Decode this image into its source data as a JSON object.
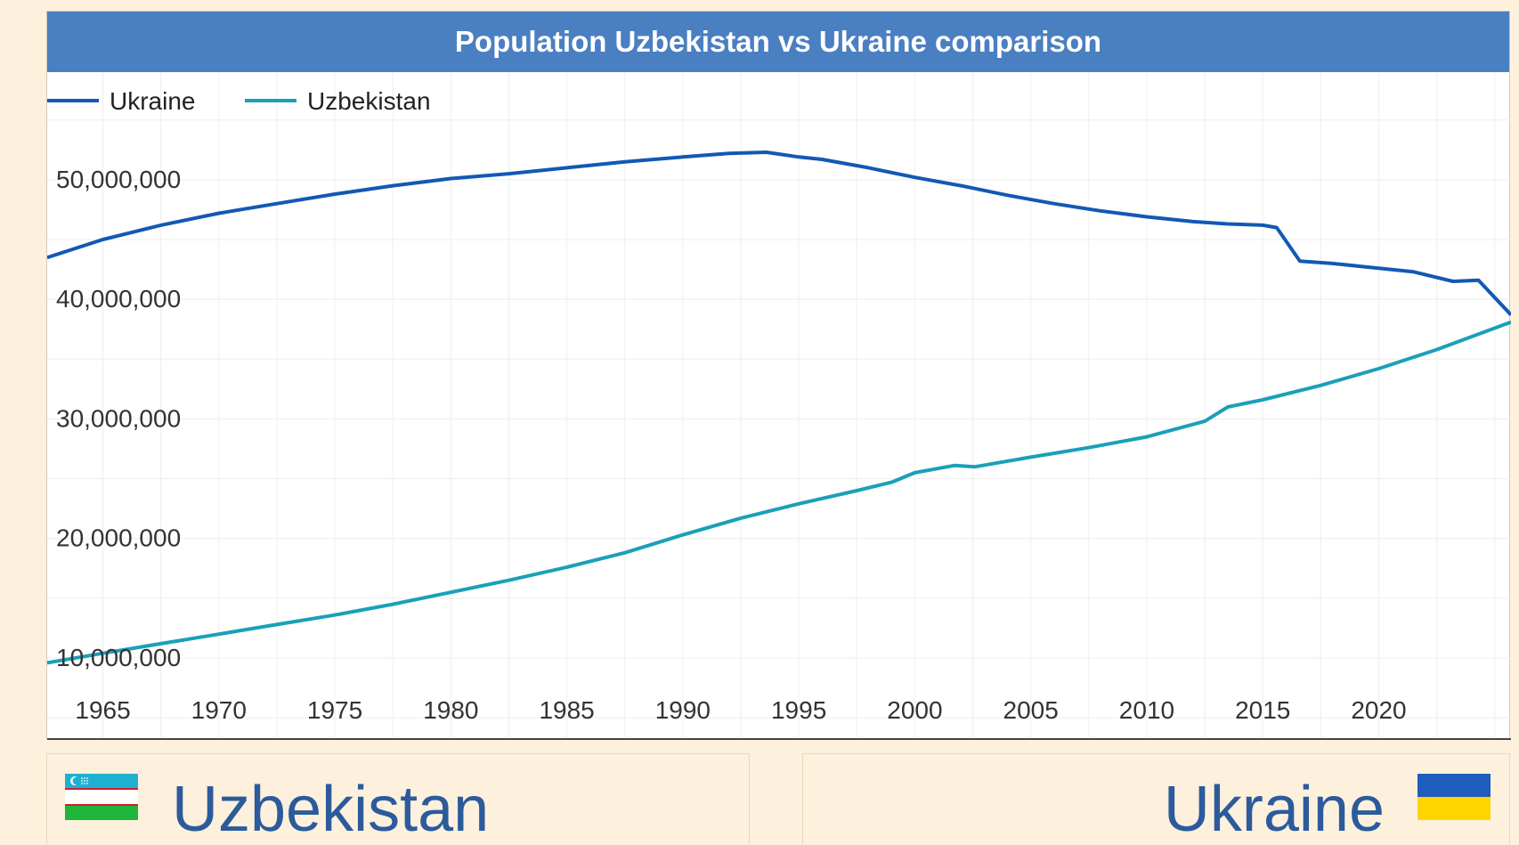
{
  "chart_data": {
    "type": "line",
    "title": "Population Uzbekistan vs Ukraine comparison",
    "xlabel": "",
    "ylabel": "",
    "xlim": [
      1962.6,
      2025.7
    ],
    "ylim": [
      3300000,
      59000000
    ],
    "legend_position": "top-left",
    "grid": true,
    "x_ticks": [
      1965,
      1970,
      1975,
      1980,
      1985,
      1990,
      1995,
      2000,
      2005,
      2010,
      2015,
      2020
    ],
    "y_ticks": [
      10000000,
      20000000,
      30000000,
      40000000,
      50000000
    ],
    "y_tick_labels": [
      "10,000,000",
      "20,000,000",
      "30,000,000",
      "40,000,000",
      "50,000,000"
    ],
    "series": [
      {
        "name": "Ukraine",
        "color": "#1259b4",
        "points": [
          [
            1962.6,
            43500000
          ],
          [
            1965,
            45000000
          ],
          [
            1967.5,
            46200000
          ],
          [
            1970,
            47200000
          ],
          [
            1972.5,
            48000000
          ],
          [
            1975,
            48800000
          ],
          [
            1977.5,
            49500000
          ],
          [
            1980,
            50100000
          ],
          [
            1982.5,
            50500000
          ],
          [
            1985,
            51000000
          ],
          [
            1987.5,
            51500000
          ],
          [
            1990,
            51900000
          ],
          [
            1992,
            52200000
          ],
          [
            1993.6,
            52300000
          ],
          [
            1995,
            51900000
          ],
          [
            1996,
            51700000
          ],
          [
            1998,
            51000000
          ],
          [
            2000,
            50200000
          ],
          [
            2002,
            49500000
          ],
          [
            2004,
            48700000
          ],
          [
            2006,
            48000000
          ],
          [
            2008,
            47400000
          ],
          [
            2010,
            46900000
          ],
          [
            2012,
            46500000
          ],
          [
            2013.5,
            46300000
          ],
          [
            2015,
            46200000
          ],
          [
            2015.6,
            46000000
          ],
          [
            2016.6,
            43200000
          ],
          [
            2018,
            43000000
          ],
          [
            2020,
            42600000
          ],
          [
            2021.5,
            42300000
          ],
          [
            2023.2,
            41500000
          ],
          [
            2024.3,
            41600000
          ],
          [
            2025.7,
            38700000
          ]
        ]
      },
      {
        "name": "Uzbekistan",
        "color": "#1aa0b8",
        "points": [
          [
            1962.6,
            9600000
          ],
          [
            1965,
            10400000
          ],
          [
            1967.5,
            11200000
          ],
          [
            1970,
            12000000
          ],
          [
            1972.5,
            12800000
          ],
          [
            1975,
            13600000
          ],
          [
            1977.5,
            14500000
          ],
          [
            1980,
            15500000
          ],
          [
            1982.5,
            16500000
          ],
          [
            1985,
            17600000
          ],
          [
            1987.5,
            18800000
          ],
          [
            1990,
            20300000
          ],
          [
            1992.5,
            21700000
          ],
          [
            1995,
            22900000
          ],
          [
            1997.5,
            24000000
          ],
          [
            1999,
            24700000
          ],
          [
            2000,
            25500000
          ],
          [
            2001.7,
            26100000
          ],
          [
            2002.6,
            26000000
          ],
          [
            2005,
            26800000
          ],
          [
            2007.5,
            27600000
          ],
          [
            2010,
            28500000
          ],
          [
            2012.5,
            29800000
          ],
          [
            2013.5,
            31000000
          ],
          [
            2015,
            31600000
          ],
          [
            2017.5,
            32800000
          ],
          [
            2020,
            34200000
          ],
          [
            2022.5,
            35800000
          ],
          [
            2025.7,
            38100000
          ]
        ]
      }
    ]
  },
  "cards": {
    "left": {
      "name": "Uzbekistan",
      "flag": "uzbekistan-flag"
    },
    "right": {
      "name": "Ukraine",
      "flag": "ukraine-flag"
    }
  },
  "colors": {
    "title_bar": "#4a7fc1",
    "page_background": "#fdf0dd",
    "country_name": "#2c5b9c"
  }
}
